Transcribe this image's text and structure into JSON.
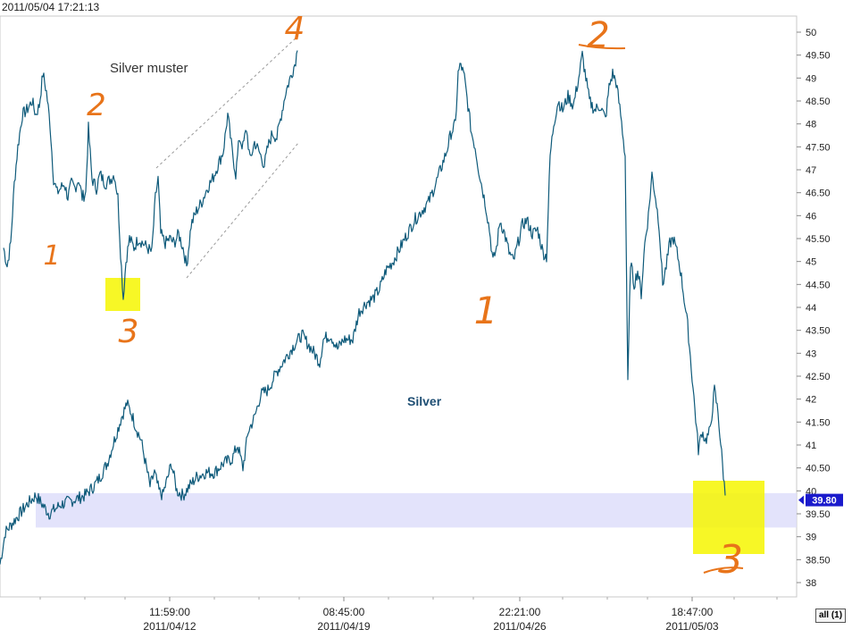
{
  "header": {
    "timestamp": "2011/05/04 17:21:13"
  },
  "controls": {
    "all_button_label": "all (1)"
  },
  "chart_data": {
    "type": "line",
    "title": "Silver",
    "inset_title": "Silver muster",
    "series_color": "#0e5a7a",
    "ylim": [
      37.8,
      50.3
    ],
    "y_ticks": [
      "50",
      "49.50",
      "49",
      "48.50",
      "48",
      "47.50",
      "47",
      "46.50",
      "46",
      "45.50",
      "45",
      "44.50",
      "44",
      "43.50",
      "43",
      "42.50",
      "42",
      "41.50",
      "41",
      "40.50",
      "40",
      "39.50",
      "39",
      "38.50",
      "38"
    ],
    "x_ticks": [
      {
        "time": "11:59:00",
        "date": "2011/04/12"
      },
      {
        "time": "08:45:00",
        "date": "2011/04/19"
      },
      {
        "time": "22:21:00",
        "date": "2011/04/26"
      },
      {
        "time": "18:47:00",
        "date": "2011/05/03"
      }
    ],
    "last_price": "39.80",
    "last_price_color": "#1a1acc",
    "support_band": [
      39.2,
      39.95
    ],
    "support_band_color": "#dcdcfa",
    "highlight_color": "#f6f600",
    "main_series": [
      {
        "x": 0,
        "y": 38.4
      },
      {
        "x": 6,
        "y": 39.1
      },
      {
        "x": 18,
        "y": 39.4
      },
      {
        "x": 30,
        "y": 39.7
      },
      {
        "x": 40,
        "y": 39.9
      },
      {
        "x": 55,
        "y": 39.5
      },
      {
        "x": 68,
        "y": 39.7
      },
      {
        "x": 82,
        "y": 39.8
      },
      {
        "x": 95,
        "y": 39.9
      },
      {
        "x": 105,
        "y": 40.1
      },
      {
        "x": 112,
        "y": 40.3
      },
      {
        "x": 120,
        "y": 40.6
      },
      {
        "x": 128,
        "y": 41.1
      },
      {
        "x": 136,
        "y": 41.6
      },
      {
        "x": 142,
        "y": 41.9
      },
      {
        "x": 147,
        "y": 41.7
      },
      {
        "x": 152,
        "y": 41.4
      },
      {
        "x": 158,
        "y": 41.1
      },
      {
        "x": 163,
        "y": 40.6
      },
      {
        "x": 168,
        "y": 40.1
      },
      {
        "x": 173,
        "y": 40.4
      },
      {
        "x": 178,
        "y": 40.0
      },
      {
        "x": 182,
        "y": 39.9
      },
      {
        "x": 188,
        "y": 40.3
      },
      {
        "x": 192,
        "y": 40.6
      },
      {
        "x": 198,
        "y": 40.0
      },
      {
        "x": 205,
        "y": 39.9
      },
      {
        "x": 212,
        "y": 40.1
      },
      {
        "x": 220,
        "y": 40.3
      },
      {
        "x": 230,
        "y": 40.4
      },
      {
        "x": 240,
        "y": 40.4
      },
      {
        "x": 250,
        "y": 40.6
      },
      {
        "x": 260,
        "y": 40.7
      },
      {
        "x": 266,
        "y": 41.0
      },
      {
        "x": 272,
        "y": 40.5
      },
      {
        "x": 278,
        "y": 41.3
      },
      {
        "x": 285,
        "y": 41.6
      },
      {
        "x": 292,
        "y": 42.1
      },
      {
        "x": 300,
        "y": 42.2
      },
      {
        "x": 310,
        "y": 42.6
      },
      {
        "x": 320,
        "y": 42.9
      },
      {
        "x": 330,
        "y": 43.2
      },
      {
        "x": 338,
        "y": 43.4
      },
      {
        "x": 345,
        "y": 43.2
      },
      {
        "x": 352,
        "y": 43.0
      },
      {
        "x": 358,
        "y": 42.8
      },
      {
        "x": 362,
        "y": 43.3
      },
      {
        "x": 370,
        "y": 43.4
      },
      {
        "x": 378,
        "y": 43.1
      },
      {
        "x": 385,
        "y": 43.3
      },
      {
        "x": 395,
        "y": 43.3
      },
      {
        "x": 402,
        "y": 43.9
      },
      {
        "x": 410,
        "y": 44.1
      },
      {
        "x": 418,
        "y": 44.2
      },
      {
        "x": 425,
        "y": 44.4
      },
      {
        "x": 432,
        "y": 44.8
      },
      {
        "x": 440,
        "y": 45.0
      },
      {
        "x": 448,
        "y": 45.3
      },
      {
        "x": 456,
        "y": 45.6
      },
      {
        "x": 464,
        "y": 45.9
      },
      {
        "x": 472,
        "y": 46.1
      },
      {
        "x": 480,
        "y": 46.3
      },
      {
        "x": 488,
        "y": 46.7
      },
      {
        "x": 495,
        "y": 47.1
      },
      {
        "x": 500,
        "y": 47.4
      },
      {
        "x": 505,
        "y": 47.8
      },
      {
        "x": 510,
        "y": 48.0
      },
      {
        "x": 513,
        "y": 49.1
      },
      {
        "x": 516,
        "y": 49.3
      },
      {
        "x": 520,
        "y": 49.0
      },
      {
        "x": 524,
        "y": 48.4
      },
      {
        "x": 528,
        "y": 47.8
      },
      {
        "x": 532,
        "y": 47.5
      },
      {
        "x": 536,
        "y": 47.0
      },
      {
        "x": 540,
        "y": 46.6
      },
      {
        "x": 544,
        "y": 46.2
      },
      {
        "x": 548,
        "y": 45.7
      },
      {
        "x": 552,
        "y": 45.0
      },
      {
        "x": 556,
        "y": 45.3
      },
      {
        "x": 560,
        "y": 45.9
      },
      {
        "x": 565,
        "y": 45.6
      },
      {
        "x": 570,
        "y": 45.2
      },
      {
        "x": 575,
        "y": 45.0
      },
      {
        "x": 580,
        "y": 45.4
      },
      {
        "x": 585,
        "y": 45.8
      },
      {
        "x": 590,
        "y": 45.9
      },
      {
        "x": 596,
        "y": 45.6
      },
      {
        "x": 602,
        "y": 45.7
      },
      {
        "x": 608,
        "y": 45.2
      },
      {
        "x": 612,
        "y": 45.1
      },
      {
        "x": 616,
        "y": 47.3
      },
      {
        "x": 620,
        "y": 48.0
      },
      {
        "x": 625,
        "y": 48.5
      },
      {
        "x": 630,
        "y": 48.3
      },
      {
        "x": 636,
        "y": 48.6
      },
      {
        "x": 642,
        "y": 48.4
      },
      {
        "x": 648,
        "y": 49.0
      },
      {
        "x": 652,
        "y": 49.5
      },
      {
        "x": 656,
        "y": 49.0
      },
      {
        "x": 660,
        "y": 48.5
      },
      {
        "x": 666,
        "y": 48.3
      },
      {
        "x": 672,
        "y": 48.4
      },
      {
        "x": 678,
        "y": 48.1
      },
      {
        "x": 682,
        "y": 48.8
      },
      {
        "x": 686,
        "y": 49.1
      },
      {
        "x": 690,
        "y": 48.9
      },
      {
        "x": 695,
        "y": 48.2
      },
      {
        "x": 700,
        "y": 47.3
      },
      {
        "x": 703,
        "y": 42.3
      },
      {
        "x": 706,
        "y": 45.0
      },
      {
        "x": 710,
        "y": 44.5
      },
      {
        "x": 714,
        "y": 44.8
      },
      {
        "x": 718,
        "y": 44.3
      },
      {
        "x": 722,
        "y": 45.4
      },
      {
        "x": 726,
        "y": 46.0
      },
      {
        "x": 730,
        "y": 46.9
      },
      {
        "x": 734,
        "y": 46.4
      },
      {
        "x": 738,
        "y": 45.8
      },
      {
        "x": 742,
        "y": 44.5
      },
      {
        "x": 746,
        "y": 44.9
      },
      {
        "x": 750,
        "y": 45.4
      },
      {
        "x": 754,
        "y": 45.5
      },
      {
        "x": 758,
        "y": 45.2
      },
      {
        "x": 762,
        "y": 44.8
      },
      {
        "x": 766,
        "y": 44.2
      },
      {
        "x": 770,
        "y": 43.6
      },
      {
        "x": 774,
        "y": 42.7
      },
      {
        "x": 778,
        "y": 41.8
      },
      {
        "x": 782,
        "y": 40.9
      },
      {
        "x": 786,
        "y": 41.3
      },
      {
        "x": 790,
        "y": 41.1
      },
      {
        "x": 795,
        "y": 41.3
      },
      {
        "x": 800,
        "y": 42.2
      },
      {
        "x": 804,
        "y": 41.7
      },
      {
        "x": 808,
        "y": 40.8
      },
      {
        "x": 812,
        "y": 39.9
      }
    ],
    "inset_series": [
      {
        "x": 4,
        "y": 45.3
      },
      {
        "x": 8,
        "y": 44.9
      },
      {
        "x": 12,
        "y": 45.4
      },
      {
        "x": 16,
        "y": 46.7
      },
      {
        "x": 20,
        "y": 47.5
      },
      {
        "x": 25,
        "y": 48.2
      },
      {
        "x": 30,
        "y": 48.3
      },
      {
        "x": 36,
        "y": 48.5
      },
      {
        "x": 40,
        "y": 48.2
      },
      {
        "x": 44,
        "y": 48.4
      },
      {
        "x": 48,
        "y": 49.1
      },
      {
        "x": 52,
        "y": 48.7
      },
      {
        "x": 56,
        "y": 48.0
      },
      {
        "x": 60,
        "y": 46.8
      },
      {
        "x": 64,
        "y": 46.5
      },
      {
        "x": 68,
        "y": 46.6
      },
      {
        "x": 72,
        "y": 46.7
      },
      {
        "x": 76,
        "y": 46.4
      },
      {
        "x": 80,
        "y": 46.7
      },
      {
        "x": 84,
        "y": 46.6
      },
      {
        "x": 88,
        "y": 46.8
      },
      {
        "x": 92,
        "y": 46.4
      },
      {
        "x": 96,
        "y": 46.5
      },
      {
        "x": 99,
        "y": 47.9
      },
      {
        "x": 103,
        "y": 46.8
      },
      {
        "x": 108,
        "y": 46.6
      },
      {
        "x": 112,
        "y": 46.9
      },
      {
        "x": 118,
        "y": 46.7
      },
      {
        "x": 124,
        "y": 46.8
      },
      {
        "x": 128,
        "y": 46.9
      },
      {
        "x": 132,
        "y": 46.4
      },
      {
        "x": 135,
        "y": 45.2
      },
      {
        "x": 138,
        "y": 44.2
      },
      {
        "x": 141,
        "y": 45.0
      },
      {
        "x": 145,
        "y": 45.5
      },
      {
        "x": 150,
        "y": 45.3
      },
      {
        "x": 155,
        "y": 45.5
      },
      {
        "x": 160,
        "y": 45.4
      },
      {
        "x": 165,
        "y": 45.3
      },
      {
        "x": 170,
        "y": 45.2
      },
      {
        "x": 174,
        "y": 46.4
      },
      {
        "x": 177,
        "y": 46.8
      },
      {
        "x": 180,
        "y": 45.6
      },
      {
        "x": 185,
        "y": 45.4
      },
      {
        "x": 190,
        "y": 45.5
      },
      {
        "x": 195,
        "y": 45.4
      },
      {
        "x": 200,
        "y": 45.6
      },
      {
        "x": 205,
        "y": 45.3
      },
      {
        "x": 209,
        "y": 44.9
      },
      {
        "x": 214,
        "y": 45.8
      },
      {
        "x": 220,
        "y": 46.1
      },
      {
        "x": 226,
        "y": 46.3
      },
      {
        "x": 232,
        "y": 46.6
      },
      {
        "x": 238,
        "y": 46.8
      },
      {
        "x": 244,
        "y": 47.1
      },
      {
        "x": 250,
        "y": 47.4
      },
      {
        "x": 255,
        "y": 48.2
      },
      {
        "x": 260,
        "y": 47.4
      },
      {
        "x": 264,
        "y": 46.9
      },
      {
        "x": 268,
        "y": 47.7
      },
      {
        "x": 272,
        "y": 47.5
      },
      {
        "x": 276,
        "y": 47.9
      },
      {
        "x": 280,
        "y": 47.2
      },
      {
        "x": 285,
        "y": 47.6
      },
      {
        "x": 290,
        "y": 47.4
      },
      {
        "x": 296,
        "y": 47.1
      },
      {
        "x": 300,
        "y": 47.5
      },
      {
        "x": 305,
        "y": 47.8
      },
      {
        "x": 310,
        "y": 47.7
      },
      {
        "x": 315,
        "y": 48.2
      },
      {
        "x": 320,
        "y": 48.7
      },
      {
        "x": 325,
        "y": 49.0
      },
      {
        "x": 330,
        "y": 49.3
      },
      {
        "x": 333,
        "y": 49.6
      }
    ],
    "annotations": {
      "n1a": "1",
      "n2a": "2",
      "n3a": "3",
      "n4a": "4",
      "n1b": "1",
      "n2b": "2",
      "n3b": "3"
    },
    "annotation_color": "#e8741a"
  }
}
